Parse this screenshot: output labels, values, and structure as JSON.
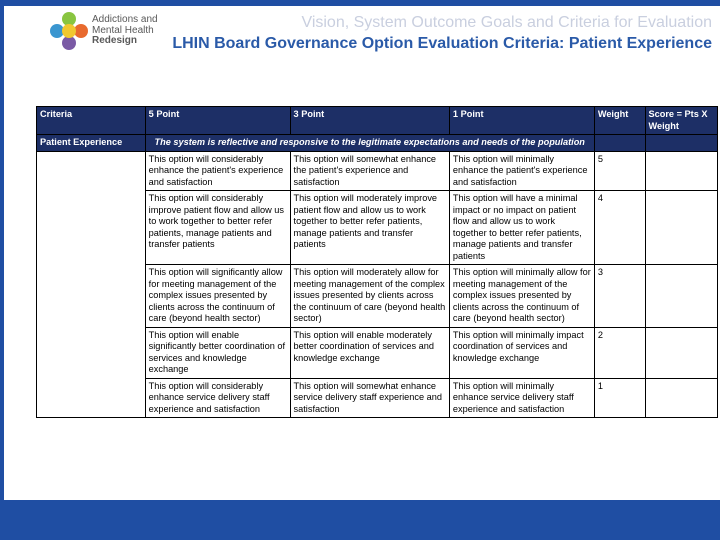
{
  "logo": {
    "line1": "Addictions and",
    "line2": "Mental Health",
    "line3": "Redesign"
  },
  "header": {
    "line1": "Vision, System Outcome Goals and Criteria for Evaluation",
    "line2": "LHIN Board Governance Option Evaluation Criteria: Patient Experience"
  },
  "columns": {
    "criteria": "Criteria",
    "p5": "5 Point",
    "p3": "3 Point",
    "p1": "1 Point",
    "weight": "Weight",
    "score": "Score = Pts X Weight"
  },
  "category": {
    "label": "Patient Experience",
    "desc": "The system is reflective and responsive to the legitimate expectations and needs of the population"
  },
  "rows": [
    {
      "c5": "This option will considerably enhance the patient's experience and satisfaction",
      "c3": "This option will somewhat enhance the patient's experience and satisfaction",
      "c1": "This option will minimally enhance the patient's experience and satisfaction",
      "w": "5"
    },
    {
      "c5": "This option will considerably improve patient flow and allow us to work together to better refer patients, manage patients and transfer patients",
      "c3": "This option will moderately improve patient flow and allow us to work together to better refer patients, manage patients and transfer patients",
      "c1": "This option will have a minimal impact or no impact on patient flow and allow us to work together to better refer patients, manage patients and transfer patients",
      "w": "4"
    },
    {
      "c5": "This option will significantly allow for meeting management of the complex issues presented by clients across the continuum of care (beyond health sector)",
      "c3": "This option will moderately allow for meeting management of the complex issues presented by clients across the continuum of care (beyond health sector)",
      "c1": "This option will minimally allow for meeting management of the complex issues presented by clients across the continuum of care (beyond health sector)",
      "w": "3"
    },
    {
      "c5": "This option will enable significantly better coordination of services and knowledge exchange",
      "c3": "This option will enable moderately better coordination of services and knowledge exchange",
      "c1": "This option will minimally impact coordination of services and knowledge exchange",
      "w": "2"
    },
    {
      "c5": "This option will considerably enhance service delivery staff experience and satisfaction",
      "c3": "This option will somewhat enhance  service delivery staff experience and satisfaction",
      "c1": "This option will minimally enhance service delivery staff experience and satisfaction",
      "w": "1"
    }
  ]
}
